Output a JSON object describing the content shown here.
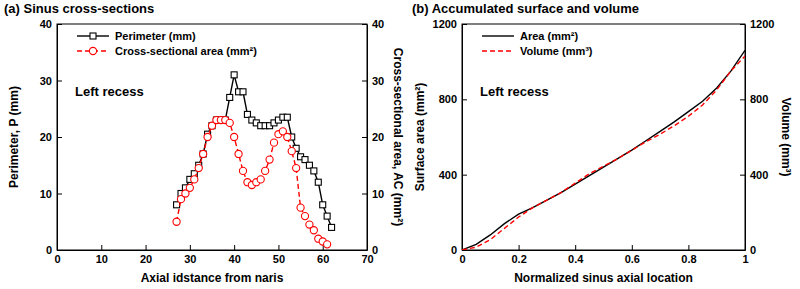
{
  "chart_data": [
    {
      "type": "line",
      "title": "(a) Sinus cross-sections",
      "annotation": "Left recess",
      "x_label": "Axial idstance from naris",
      "y_label": "Perimeter, P (mm)",
      "y2_label": "Cross-sectional area, AC (mm²)",
      "xlim": [
        0,
        70
      ],
      "xticks": [
        0,
        10,
        20,
        30,
        40,
        50,
        60,
        70
      ],
      "ylim": [
        0,
        40
      ],
      "yticks": [
        0,
        10,
        20,
        30,
        40
      ],
      "y2lim": [
        0,
        40
      ],
      "y2ticks": [
        0,
        10,
        20,
        30,
        40
      ],
      "legend": "upper left",
      "series": [
        {
          "name": "Perimeter (mm)",
          "color": "#000000",
          "marker": "square",
          "line_style": "solid",
          "x": [
            27,
            28,
            29,
            30,
            31,
            32,
            33,
            34,
            35,
            36,
            37,
            38,
            39,
            40,
            41,
            42,
            43,
            44,
            45,
            46,
            47,
            48,
            49,
            50,
            51,
            52,
            53,
            54,
            55,
            56,
            57,
            58,
            59,
            60,
            61,
            62
          ],
          "values": [
            8,
            10,
            11,
            12.5,
            13.5,
            15,
            17,
            20.5,
            22,
            23,
            23,
            23,
            27,
            31,
            28,
            28,
            24,
            23,
            22.5,
            22,
            22,
            22,
            22.5,
            23,
            23.5,
            23.5,
            20,
            18,
            16.5,
            16,
            15,
            14,
            12,
            8,
            6,
            4
          ]
        },
        {
          "name": "Cross-sectional area (mm²)",
          "color": "#ff0000",
          "marker": "circle",
          "line_style": "dashed",
          "axis": "y2",
          "x": [
            27,
            28,
            29,
            30,
            31,
            32,
            33,
            34,
            35,
            36,
            37,
            38,
            39,
            40,
            41,
            42,
            43,
            44,
            45,
            46,
            47,
            48,
            49,
            50,
            51,
            52,
            53,
            54,
            55,
            56,
            57,
            58,
            59,
            60,
            61
          ],
          "values": [
            5,
            9,
            10,
            11,
            12.5,
            14.5,
            17,
            20,
            22,
            23,
            23,
            23,
            22.5,
            20,
            17,
            14,
            12,
            11.5,
            12,
            12.5,
            14,
            16,
            19,
            20.5,
            21,
            20,
            17.5,
            14.5,
            7.5,
            6,
            4.5,
            3.5,
            2,
            1.5,
            1
          ]
        }
      ]
    },
    {
      "type": "line",
      "title": "(b) Accumulated surface and volume",
      "annotation": "Left recess",
      "x_label": "Normalized sinus axial location",
      "y_label": "Surface area (mm²)",
      "y2_label": "Volume (mm³)",
      "xlim": [
        0,
        1
      ],
      "xticks": [
        0,
        0.2,
        0.4,
        0.6,
        0.8,
        1
      ],
      "ylim": [
        0,
        1200
      ],
      "yticks": [
        0,
        400,
        800,
        1200
      ],
      "y2lim": [
        0,
        1200
      ],
      "y2ticks": [
        0,
        400,
        800,
        1200
      ],
      "legend": "upper left",
      "x": [
        0,
        0.05,
        0.1,
        0.15,
        0.2,
        0.25,
        0.3,
        0.35,
        0.4,
        0.45,
        0.5,
        0.55,
        0.6,
        0.65,
        0.7,
        0.75,
        0.8,
        0.85,
        0.9,
        0.95,
        1
      ],
      "series": [
        {
          "name": "Area (mm²)",
          "color": "#000000",
          "marker": "none",
          "line_style": "solid",
          "values": [
            0,
            30,
            80,
            140,
            190,
            225,
            265,
            305,
            350,
            395,
            440,
            485,
            530,
            580,
            630,
            680,
            735,
            790,
            860,
            950,
            1060
          ]
        },
        {
          "name": "Volume (mm³)",
          "color": "#ff0000",
          "marker": "none",
          "line_style": "dashed",
          "axis": "y2",
          "values": [
            0,
            15,
            55,
            115,
            175,
            225,
            265,
            305,
            355,
            405,
            445,
            485,
            530,
            575,
            615,
            660,
            710,
            770,
            850,
            950,
            1030
          ]
        }
      ]
    }
  ]
}
